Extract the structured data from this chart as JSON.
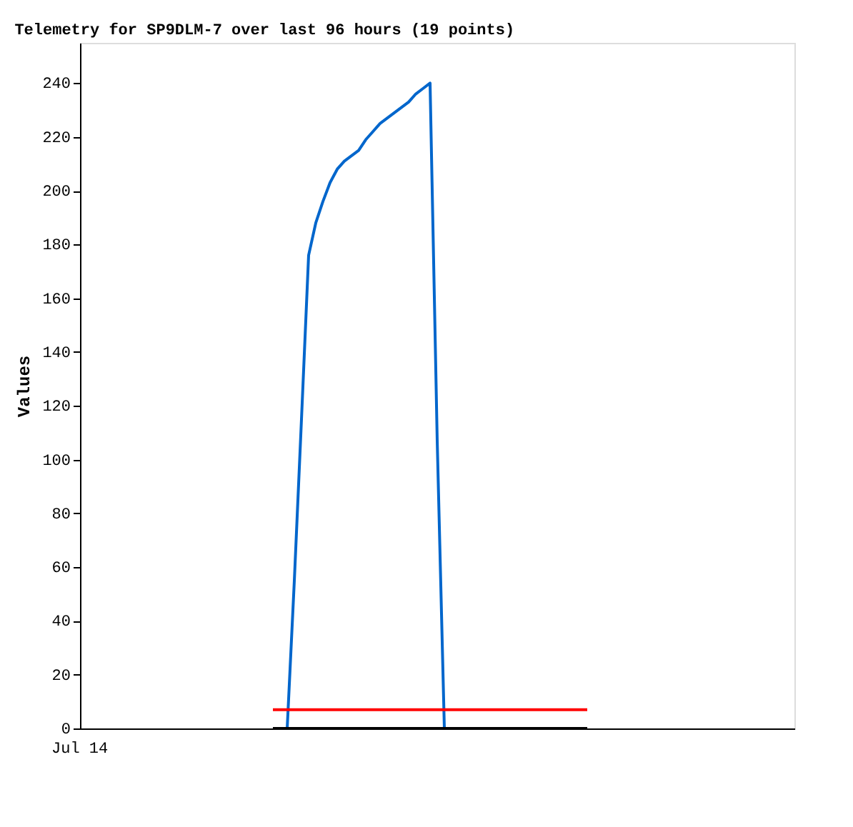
{
  "chart_data": {
    "type": "line",
    "title": "Telemetry for SP9DLM-7 over last 96 hours (19 points)",
    "ylabel": "Values",
    "annotations": [
      "Jul 14"
    ],
    "categories": [
      null,
      null,
      null,
      null,
      null,
      null,
      null,
      null,
      null,
      null,
      null,
      null,
      null,
      null,
      null,
      null,
      null,
      null,
      null,
      null,
      null,
      null,
      null,
      null,
      null,
      null,
      null,
      null,
      null,
      null,
      null,
      null,
      null,
      null,
      null,
      null,
      null,
      null,
      null,
      null,
      null,
      null,
      null,
      null,
      null,
      null,
      null,
      null,
      null,
      null,
      null,
      null,
      null,
      null,
      null,
      null,
      null,
      null,
      null,
      null,
      null,
      null,
      null,
      null,
      null,
      null,
      null,
      null,
      null,
      null,
      null,
      null,
      null,
      null,
      null,
      null,
      null,
      null,
      null,
      null,
      null,
      null,
      null,
      null,
      null,
      null,
      null,
      null,
      null,
      null,
      null,
      null,
      null,
      null,
      null,
      null,
      null,
      null,
      null,
      null,
      null
    ],
    "ylim": [
      0,
      255
    ],
    "yticks": [
      0,
      20,
      40,
      60,
      80,
      100,
      120,
      140,
      160,
      180,
      200,
      220,
      240
    ],
    "series": [
      {
        "color": "#0066cc",
        "values": [
          null,
          null,
          null,
          null,
          null,
          null,
          null,
          null,
          null,
          null,
          null,
          null,
          null,
          null,
          null,
          null,
          null,
          null,
          null,
          null,
          null,
          null,
          null,
          null,
          null,
          null,
          null,
          null,
          null,
          0,
          55,
          115,
          176,
          188,
          196,
          203,
          208,
          211,
          213,
          215,
          219,
          222,
          225,
          227,
          229,
          231,
          233,
          236,
          238,
          240,
          107,
          0,
          null,
          null,
          null,
          null,
          null,
          null,
          null,
          null,
          null,
          null,
          null,
          null,
          null,
          null,
          null,
          null,
          null,
          null,
          null,
          null,
          null,
          null,
          null,
          null,
          null,
          null,
          null,
          null,
          null,
          null,
          null,
          null,
          null,
          null,
          null,
          null,
          null,
          null,
          null,
          null,
          null,
          null,
          null,
          null,
          null,
          null,
          null,
          null,
          null
        ]
      },
      {
        "color": "#ff0000",
        "values": [
          null,
          null,
          null,
          null,
          null,
          null,
          null,
          null,
          null,
          null,
          null,
          null,
          null,
          null,
          null,
          null,
          null,
          null,
          null,
          null,
          null,
          null,
          null,
          null,
          null,
          null,
          null,
          7,
          7,
          7,
          7,
          7,
          7,
          7,
          7,
          7,
          7,
          7,
          7,
          7,
          7,
          7,
          7,
          7,
          7,
          7,
          7,
          7,
          7,
          7,
          7,
          7,
          7,
          7,
          7,
          7,
          7,
          7,
          7,
          7,
          7,
          7,
          7,
          7,
          7,
          7,
          7,
          7,
          7,
          7,
          7,
          7,
          null,
          null,
          null,
          null,
          null,
          null,
          null,
          null,
          null,
          null,
          null,
          null,
          null,
          null,
          null,
          null,
          null,
          null,
          null,
          null,
          null,
          null,
          null,
          null,
          null,
          null,
          null,
          null,
          null
        ]
      },
      {
        "color": "#000000",
        "values": [
          null,
          null,
          null,
          null,
          null,
          null,
          null,
          null,
          null,
          null,
          null,
          null,
          null,
          null,
          null,
          null,
          null,
          null,
          null,
          null,
          null,
          null,
          null,
          null,
          null,
          null,
          null,
          0,
          0,
          0,
          0,
          0,
          0,
          0,
          0,
          0,
          0,
          0,
          0,
          0,
          0,
          0,
          0,
          0,
          0,
          0,
          0,
          0,
          0,
          0,
          0,
          0,
          0,
          0,
          0,
          0,
          0,
          0,
          0,
          0,
          0,
          0,
          0,
          0,
          0,
          0,
          0,
          0,
          0,
          0,
          0,
          0,
          null,
          null,
          null,
          null,
          null,
          null,
          null,
          null,
          null,
          null,
          null,
          null,
          null,
          null,
          null,
          null,
          null,
          null,
          null,
          null,
          null,
          null,
          null,
          null,
          null,
          null,
          null,
          null,
          null
        ]
      }
    ]
  }
}
